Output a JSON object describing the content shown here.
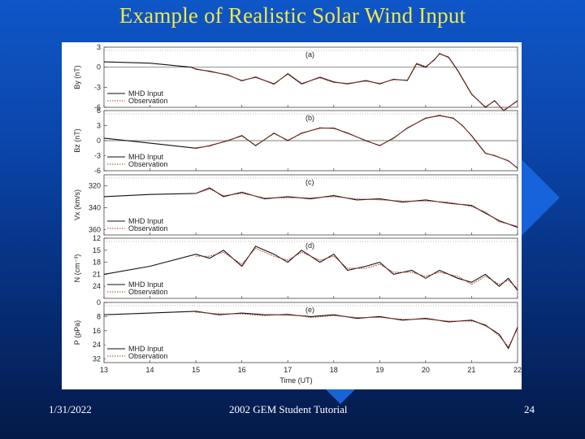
{
  "slide": {
    "title": "Example of Realistic Solar Wind Input",
    "footer_date": "1/31/2022",
    "footer_center": "2002 GEM Student Tutorial",
    "slide_number": "24"
  },
  "colors": {
    "title": "#f2e84a",
    "mhd_input": "#111111",
    "observation": "#c0392b"
  },
  "chart_data": {
    "type": "line",
    "xlabel": "Time (UT)",
    "xlim": [
      13,
      22
    ],
    "xticks": [
      "13",
      "14",
      "15",
      "16",
      "17",
      "18",
      "19",
      "20",
      "21",
      "22"
    ],
    "legend": [
      "MHD Input",
      "Observation"
    ],
    "panels": [
      {
        "id": "(a)",
        "ylabel": "By (nT)",
        "ylim": [
          3,
          -6
        ],
        "yticks": [
          3,
          0,
          -3,
          -6
        ],
        "ytick_labels": [
          "3",
          "0",
          "-3",
          "-6"
        ],
        "series": [
          {
            "name": "MHD Input",
            "x": [
              13,
              14,
              14.9,
              15,
              15.3,
              15.7,
              16,
              16.3,
              16.7,
              17,
              17.3,
              17.7,
              18,
              18.3,
              18.7,
              19,
              19.3,
              19.6,
              19.8,
              20,
              20.2,
              20.3,
              20.5,
              20.7,
              21,
              21.3,
              21.5,
              21.7,
              22
            ],
            "y": [
              0.8,
              0.6,
              0.0,
              -0.3,
              -0.6,
              -1.2,
              -2.0,
              -1.5,
              -2.5,
              -1.0,
              -2.5,
              -1.5,
              -2.2,
              -2.5,
              -2.0,
              -2.5,
              -1.8,
              -2.0,
              0.5,
              0.0,
              1.2,
              2.0,
              1.5,
              -0.5,
              -4.0,
              -6.0,
              -5.0,
              -6.5,
              -5.0
            ]
          },
          {
            "name": "Observation",
            "x": [
              15,
              15.3,
              15.7,
              16,
              16.3,
              16.7,
              17,
              17.3,
              17.7,
              18,
              18.3,
              18.7,
              19,
              19.3,
              19.6,
              19.8,
              20,
              20.2,
              20.3,
              20.5,
              20.7,
              21,
              21.3,
              21.5,
              21.7,
              22
            ],
            "y": [
              -0.2,
              -0.7,
              -1.1,
              -2.1,
              -1.4,
              -2.6,
              -0.9,
              -2.4,
              -1.6,
              -2.3,
              -2.4,
              -2.1,
              -2.4,
              -1.9,
              -1.9,
              0.6,
              0.1,
              1.1,
              2.1,
              1.4,
              -0.6,
              -4.1,
              -5.9,
              -5.1,
              -6.4,
              -5.1
            ]
          }
        ]
      },
      {
        "id": "(b)",
        "ylabel": "Bz (nT)",
        "ylim": [
          6,
          -6
        ],
        "yticks": [
          6,
          3,
          0,
          -3,
          -6
        ],
        "ytick_labels": [
          "6",
          "3",
          "0",
          "-3",
          "-6"
        ],
        "series": [
          {
            "name": "MHD Input",
            "x": [
              13,
              14,
              15,
              15.3,
              15.7,
              16,
              16.3,
              16.7,
              17,
              17.3,
              17.7,
              18,
              18.3,
              18.7,
              19,
              19.3,
              19.6,
              20,
              20.3,
              20.6,
              20.8,
              21,
              21.3,
              21.5,
              21.8,
              22
            ],
            "y": [
              0.5,
              -0.5,
              -1.5,
              -1.0,
              0.0,
              1.0,
              -1.0,
              1.5,
              0.0,
              1.5,
              2.5,
              2.5,
              1.5,
              0.0,
              -1.0,
              0.5,
              2.5,
              4.5,
              5.0,
              4.5,
              3.0,
              1.0,
              -2.5,
              -3.0,
              -4.0,
              -5.5
            ]
          },
          {
            "name": "Observation",
            "x": [
              15,
              15.3,
              15.7,
              16,
              16.3,
              16.7,
              17,
              17.3,
              17.7,
              18,
              18.3,
              18.7,
              19,
              19.3,
              19.6,
              20,
              20.3,
              20.6,
              20.8,
              21,
              21.3,
              21.5,
              21.8,
              22
            ],
            "y": [
              -1.4,
              -1.1,
              0.1,
              0.9,
              -0.9,
              1.4,
              0.1,
              1.4,
              2.6,
              2.4,
              1.6,
              -0.1,
              -0.9,
              0.4,
              2.6,
              4.4,
              5.1,
              4.4,
              3.1,
              0.9,
              -2.6,
              -2.9,
              -4.1,
              -5.4
            ]
          }
        ]
      },
      {
        "id": "(c)",
        "ylabel": "Vx (km/s)",
        "ylim": [
          310,
          365
        ],
        "yticks": [
          320,
          340,
          360
        ],
        "ytick_labels": [
          "320",
          "340",
          "360"
        ],
        "series": [
          {
            "name": "MHD Input",
            "x": [
              13,
              14,
              15,
              15.3,
              15.6,
              16,
              16.5,
              17,
              17.5,
              18,
              18.5,
              19,
              19.5,
              20,
              20.5,
              21,
              21.3,
              21.6,
              22
            ],
            "y": [
              330,
              328,
              327,
              322,
              330,
              326,
              332,
              330,
              332,
              329,
              333,
              332,
              335,
              333,
              336,
              338,
              345,
              352,
              358
            ]
          },
          {
            "name": "Observation",
            "x": [
              15,
              15.3,
              15.6,
              16,
              16.5,
              17,
              17.5,
              18,
              18.5,
              19,
              19.5,
              20,
              20.5,
              21,
              21.3,
              21.6,
              22
            ],
            "y": [
              327,
              323,
              329,
              327,
              331,
              331,
              331,
              330,
              332,
              333,
              334,
              334,
              335,
              339,
              344,
              353,
              357
            ]
          }
        ]
      },
      {
        "id": "(d)",
        "ylabel": "N (cm⁻³)",
        "ylim": [
          12,
          27
        ],
        "yticks": [
          24,
          21,
          18,
          15,
          12
        ],
        "ytick_labels": [
          "24",
          "21",
          "18",
          "15",
          "12"
        ],
        "series": [
          {
            "name": "MHD Input",
            "x": [
              13,
              14,
              15,
              15.3,
              15.6,
              16,
              16.3,
              16.7,
              17,
              17.3,
              17.7,
              18,
              18.3,
              18.7,
              19,
              19.3,
              19.7,
              20,
              20.3,
              20.7,
              21,
              21.3,
              21.6,
              21.8,
              22
            ],
            "y": [
              21,
              19,
              16,
              17,
              15,
              19,
              14,
              16,
              18,
              15,
              18,
              16,
              20,
              19,
              18,
              21,
              20,
              22,
              20,
              22,
              23,
              21,
              24,
              22,
              25
            ]
          },
          {
            "name": "Observation",
            "x": [
              15,
              15.3,
              15.6,
              16,
              16.3,
              16.7,
              17,
              17.3,
              17.7,
              18,
              18.3,
              18.7,
              19,
              19.3,
              19.7,
              20,
              20.3,
              20.7,
              21,
              21.3,
              21.6,
              21.8,
              22
            ],
            "y": [
              16.5,
              16.5,
              15.5,
              18.5,
              14.5,
              16.5,
              17.5,
              15.5,
              17.5,
              16.5,
              19.5,
              19.5,
              18.5,
              20.5,
              20.5,
              21.5,
              20.5,
              21.5,
              23.5,
              21.5,
              23.5,
              22.5,
              24.5
            ]
          }
        ]
      },
      {
        "id": "(e)",
        "ylabel": "P (pPa)",
        "ylim": [
          0,
          34
        ],
        "yticks": [
          32,
          24,
          16,
          8,
          0
        ],
        "ytick_labels": [
          "32",
          "24",
          "16",
          "8",
          "0"
        ],
        "series": [
          {
            "name": "MHD Input",
            "x": [
              13,
              14,
              15,
              15.5,
              16,
              16.5,
              17,
              17.5,
              18,
              18.5,
              19,
              19.5,
              20,
              20.5,
              21,
              21.3,
              21.6,
              21.8,
              22
            ],
            "y": [
              7,
              6,
              5,
              7,
              6,
              7,
              7,
              8,
              7,
              9,
              8,
              10,
              9,
              11,
              10,
              13,
              18,
              26,
              14
            ]
          },
          {
            "name": "Observation",
            "x": [
              15,
              15.5,
              16,
              16.5,
              17,
              17.5,
              18,
              18.5,
              19,
              19.5,
              20,
              20.5,
              21,
              21.3,
              21.6,
              21.8,
              22
            ],
            "y": [
              5.5,
              6.5,
              6.5,
              7.5,
              6.5,
              8.5,
              7.5,
              8.5,
              8.5,
              9.5,
              9.5,
              10.5,
              10.5,
              12.5,
              19,
              25,
              15
            ]
          }
        ]
      }
    ]
  }
}
